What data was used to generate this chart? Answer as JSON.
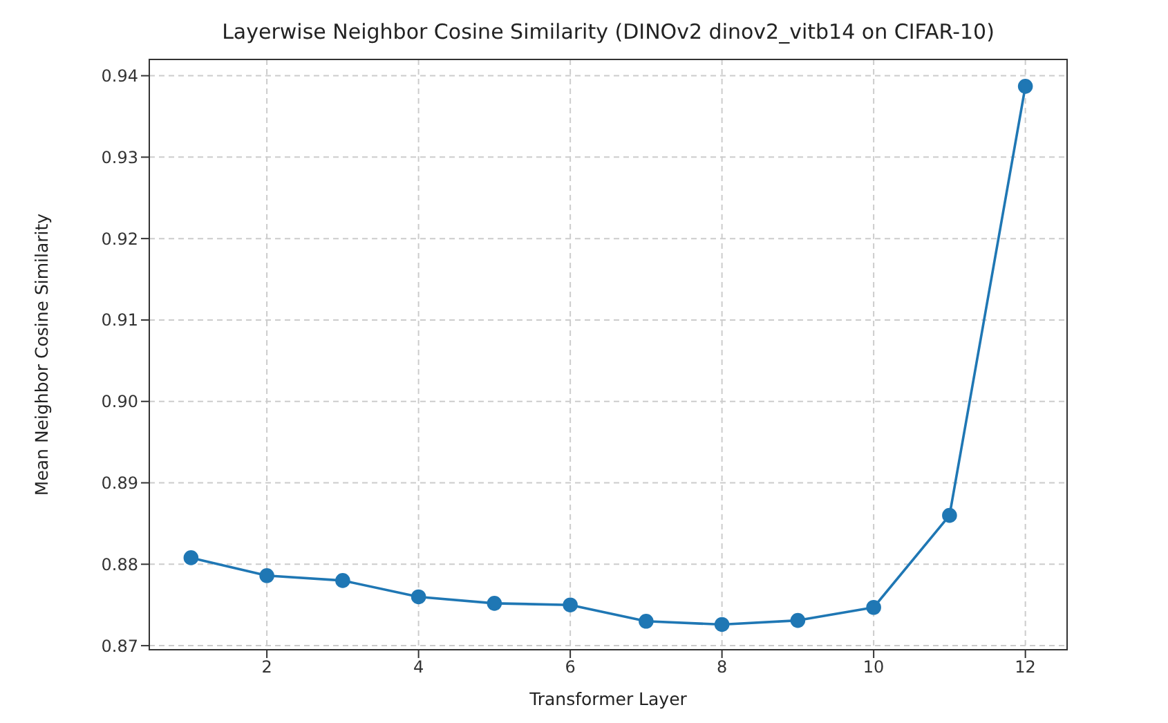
{
  "chart_data": {
    "type": "line",
    "title": "Layerwise Neighbor Cosine Similarity (DINOv2 dinov2_vitb14 on CIFAR-10)",
    "xlabel": "Transformer Layer",
    "ylabel": "Mean Neighbor Cosine Similarity",
    "x": [
      1,
      2,
      3,
      4,
      5,
      6,
      7,
      8,
      9,
      10,
      11,
      12
    ],
    "series": [
      {
        "color": "#1f77b4",
        "values": [
          0.8808,
          0.8786,
          0.878,
          0.876,
          0.8752,
          0.875,
          0.873,
          0.8726,
          0.8731,
          0.8747,
          0.886,
          0.9387
        ]
      }
    ],
    "xlim": [
      0.45,
      12.55
    ],
    "xticks": [
      2,
      4,
      6,
      8,
      10,
      12
    ],
    "ylim": [
      0.8695,
      0.942
    ],
    "yticks": [
      0.87,
      0.88,
      0.89,
      {
        "value": 0.9,
        "label": "0.90"
      },
      0.91,
      0.92,
      0.93,
      0.94
    ],
    "grid": true,
    "marker": "circle",
    "line_style": "solid"
  }
}
